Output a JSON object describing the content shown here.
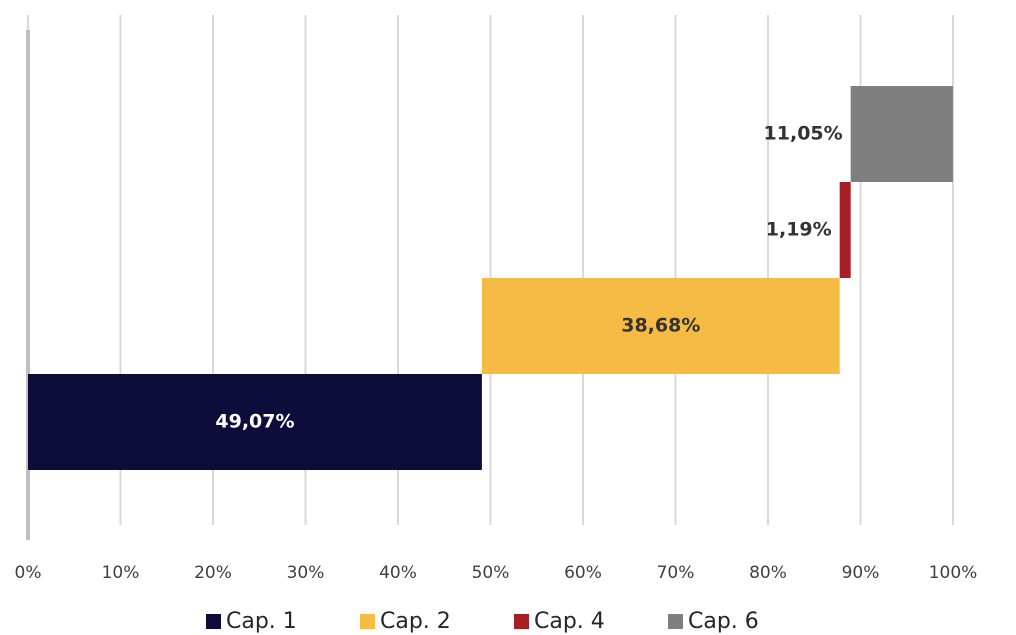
{
  "chart_data": {
    "type": "waterfall",
    "series": [
      {
        "name": "Cap. 1",
        "color": "#0e0c3a",
        "values": [
          49.07
        ],
        "value_labels": [
          "49,07%"
        ]
      },
      {
        "name": "Cap. 2",
        "color": "#f5bb45",
        "values": [
          38.68
        ],
        "value_labels": [
          "38,68%"
        ]
      },
      {
        "name": "Cap. 4",
        "color": "#a51f24",
        "values": [
          1.19
        ],
        "value_labels": [
          "1,19%"
        ]
      },
      {
        "name": "Cap. 6",
        "color": "#7f7f7f",
        "values": [
          11.05
        ],
        "value_labels": [
          "11,05%"
        ]
      }
    ],
    "xlim": [
      0,
      100
    ],
    "xticks": [
      {
        "value": 0,
        "label": "0%"
      },
      {
        "value": 10,
        "label": "10%"
      },
      {
        "value": 20,
        "label": "20%"
      },
      {
        "value": 30,
        "label": "30%"
      },
      {
        "value": 40,
        "label": "40%"
      },
      {
        "value": 50,
        "label": "50%"
      },
      {
        "value": 60,
        "label": "60%"
      },
      {
        "value": 70,
        "label": "70%"
      },
      {
        "value": 80,
        "label": "80%"
      },
      {
        "value": 90,
        "label": "90%"
      },
      {
        "value": 100,
        "label": "100%"
      }
    ],
    "grid": true,
    "legend": "bottom"
  }
}
